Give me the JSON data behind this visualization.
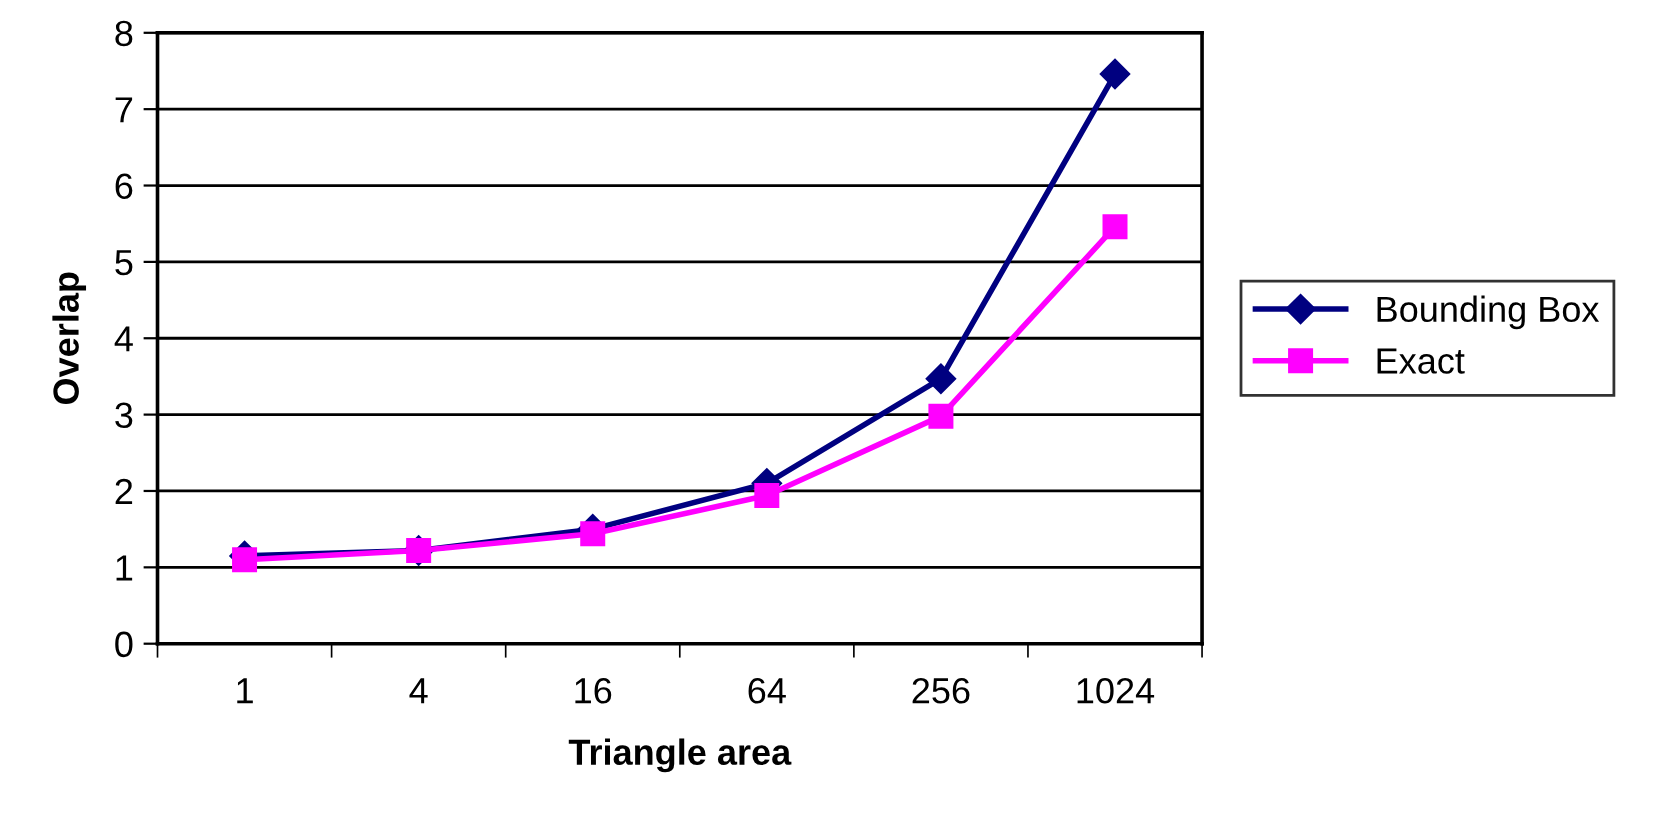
{
  "chart_data": {
    "type": "line",
    "xlabel": "Triangle area",
    "ylabel": "Overlap",
    "categories": [
      "1",
      "4",
      "16",
      "64",
      "256",
      "1024"
    ],
    "series": [
      {
        "name": "Bounding Box",
        "color": "#000080",
        "marker": "diamond",
        "values": [
          1.15,
          1.22,
          1.5,
          2.1,
          3.47,
          7.46
        ]
      },
      {
        "name": "Exact",
        "color": "#ff00ff",
        "marker": "square",
        "values": [
          1.1,
          1.22,
          1.44,
          1.94,
          2.98,
          5.46
        ]
      }
    ],
    "ylim": [
      0,
      8
    ],
    "yticks": [
      0,
      1,
      2,
      3,
      4,
      5,
      6,
      7,
      8
    ],
    "grid": "y",
    "legend": "right"
  }
}
